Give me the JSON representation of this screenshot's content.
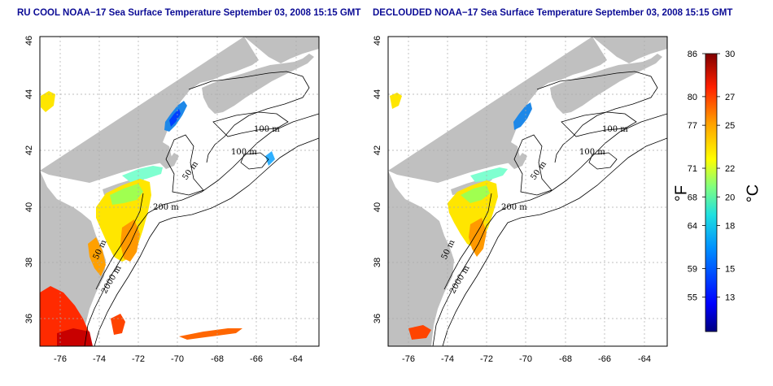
{
  "panels": [
    {
      "title": "RU COOL NOAA−17 Sea Surface Temperature September 03, 2008 15:15 GMT",
      "lon_ticks": [
        "-76",
        "-74",
        "-72",
        "-70",
        "-68",
        "-66",
        "-64"
      ],
      "lat_ticks": [
        "36",
        "38",
        "40",
        "42",
        "44",
        "46"
      ],
      "contour_labels": [
        "100 m",
        "100 m",
        "50 m",
        "200 m",
        "50 m",
        "2000 m"
      ]
    },
    {
      "title": "DECLOUDED NOAA−17 Sea Surface Temperature September 03, 2008 15:15 GMT",
      "lon_ticks": [
        "-76",
        "-74",
        "-72",
        "-70",
        "-68",
        "-66",
        "-64"
      ],
      "lat_ticks": [
        "36",
        "38",
        "40",
        "42",
        "44",
        "46"
      ],
      "contour_labels": [
        "100 m",
        "100 m",
        "50 m",
        "200 m",
        "50 m",
        "2000 m"
      ]
    }
  ],
  "colorbar": {
    "fahrenheit_unit": "°F",
    "celsius_unit": "°C",
    "fahrenheit_ticks": [
      "86",
      "80",
      "77",
      "71",
      "68",
      "64",
      "59",
      "55"
    ],
    "celsius_ticks": [
      "30",
      "27",
      "25",
      "22",
      "20",
      "18",
      "15",
      "13"
    ]
  },
  "colors": {
    "title": "#0b0b95",
    "land": "#c0c0c0",
    "ocean": "#ffffff",
    "contour": "#000000",
    "grid": "#aaaaaa"
  },
  "map_data": {
    "lon_range": [
      -77,
      -63
    ],
    "lat_range": [
      35,
      46
    ],
    "grid_lons": [
      -76,
      -74,
      -72,
      -70,
      -68,
      -66,
      -64
    ],
    "grid_lats": [
      36,
      38,
      40,
      42,
      44
    ],
    "colorbar_range_c": [
      10.6,
      30
    ],
    "colorbar_tick_values_c": [
      30,
      27,
      25,
      22,
      20,
      18,
      15,
      13
    ]
  }
}
